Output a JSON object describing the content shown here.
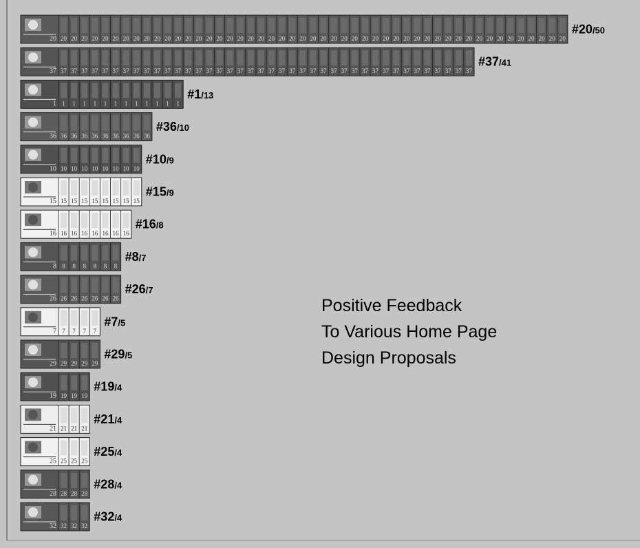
{
  "chart_data": {
    "type": "pictobar",
    "title": [
      "Positive Feedback",
      "To Various Home Page",
      "Design Proposals"
    ],
    "categories": [
      "#20",
      "#37",
      "#1",
      "#36",
      "#10",
      "#15",
      "#16",
      "#8",
      "#26",
      "#7",
      "#29",
      "#19",
      "#21",
      "#25",
      "#28",
      "#32"
    ],
    "values": [
      50,
      41,
      13,
      10,
      9,
      9,
      8,
      7,
      7,
      5,
      5,
      4,
      4,
      4,
      4,
      4
    ],
    "value_labels": [
      "/50",
      "/41",
      "/13",
      "/10",
      "/9",
      "/9",
      "/8",
      "/7",
      "/7",
      "/5",
      "/5",
      "/4",
      "/4",
      "/4",
      "/4",
      "/4"
    ],
    "thumbnail_labels": [
      "20",
      "37",
      "1",
      "36",
      "10",
      "15",
      "16",
      "8",
      "26",
      "7",
      "29",
      "19",
      "21",
      "25",
      "28",
      "32"
    ],
    "colors": [
      "#5a5a5a",
      "#555555",
      "#4e4e4e",
      "#5c5c5c",
      "#505050",
      "#f2f2f2",
      "#f2f2f2",
      "#555555",
      "#5a5a5a",
      "#f0f0f0",
      "#555555",
      "#505050",
      "#eeeeee",
      "#f2f2f2",
      "#555555",
      "#575757"
    ]
  }
}
